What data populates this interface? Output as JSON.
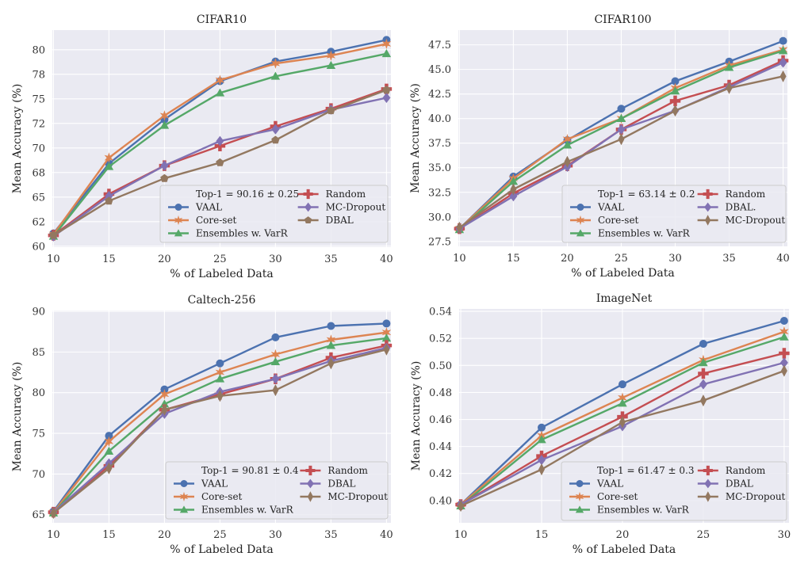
{
  "chart_data": [
    {
      "id": "cifar10",
      "type": "line",
      "title": "CIFAR10",
      "xlabel": "% of Labeled Data",
      "ylabel": "Mean Accuracy (%)",
      "x": [
        10,
        15,
        20,
        25,
        30,
        35,
        40
      ],
      "xticks": [
        10,
        15,
        20,
        25,
        30,
        35,
        40
      ],
      "xtick_labels": [
        "10",
        "15",
        "20",
        "25",
        "30",
        "35",
        "40"
      ],
      "xlim": [
        9.9,
        40.4
      ],
      "yticks": [
        60,
        62.5,
        65,
        67.5,
        70,
        72.5,
        75,
        77.5,
        80
      ],
      "ytick_labels": [
        "60",
        "62",
        "65",
        "68",
        "70",
        "72",
        "75",
        "78",
        "80"
      ],
      "ylim": [
        59.9,
        82.0
      ],
      "grid": true,
      "legend_title": "Top-1 = 90.16 ± 0.25",
      "legend_location": "lower-right",
      "series": [
        {
          "name": "VAAL",
          "color": "#4c72b0",
          "marker": "circle",
          "values": [
            61.3,
            68.4,
            72.9,
            76.8,
            78.8,
            79.8,
            81.0
          ]
        },
        {
          "name": "Core-set",
          "color": "#dd8452",
          "marker": "star",
          "values": [
            61.2,
            69.0,
            73.3,
            76.9,
            78.6,
            79.4,
            80.6
          ]
        },
        {
          "name": "Ensembles w. VarR",
          "color": "#55a868",
          "marker": "triangle",
          "values": [
            61.0,
            68.1,
            72.3,
            75.6,
            77.3,
            78.4,
            79.6
          ]
        },
        {
          "name": "Random",
          "color": "#c44e52",
          "marker": "plus",
          "values": [
            61.1,
            65.3,
            68.2,
            70.2,
            72.2,
            74.0,
            76.0
          ]
        },
        {
          "name": "MC-Dropout",
          "color": "#8172b3",
          "marker": "diamond",
          "values": [
            61.0,
            65.1,
            68.2,
            70.7,
            71.9,
            73.9,
            75.1
          ]
        },
        {
          "name": "DBAL",
          "color": "#937860",
          "marker": "pentagon",
          "values": [
            61.1,
            64.6,
            66.9,
            68.5,
            70.8,
            73.8,
            75.9
          ]
        }
      ]
    },
    {
      "id": "cifar100",
      "type": "line",
      "title": "CIFAR100",
      "xlabel": "% of Labeled Data",
      "ylabel": "Mean Accuracy (%)",
      "x": [
        10,
        15,
        20,
        25,
        30,
        35,
        40
      ],
      "xticks": [
        10,
        15,
        20,
        25,
        30,
        35,
        40
      ],
      "xtick_labels": [
        "10",
        "15",
        "20",
        "25",
        "30",
        "35",
        "40"
      ],
      "xlim": [
        9.9,
        40.4
      ],
      "yticks": [
        27.5,
        30.0,
        32.5,
        35.0,
        37.5,
        40.0,
        42.5,
        45.0,
        47.5
      ],
      "ytick_labels": [
        "27.5",
        "30.0",
        "32.5",
        "35.0",
        "37.5",
        "40.0",
        "42.5",
        "45.0",
        "47.5"
      ],
      "ylim": [
        27.0,
        49.0
      ],
      "grid": true,
      "legend_title": "Top-1 = 63.14 ± 0.2",
      "legend_location": "lower-right",
      "series": [
        {
          "name": "VAAL",
          "color": "#4c72b0",
          "marker": "circle",
          "values": [
            28.8,
            34.1,
            37.8,
            41.0,
            43.8,
            45.8,
            47.9
          ]
        },
        {
          "name": "Core-set",
          "color": "#dd8452",
          "marker": "star",
          "values": [
            28.8,
            33.9,
            37.9,
            40.0,
            43.1,
            45.4,
            47.0
          ]
        },
        {
          "name": "Ensembles w. VarR",
          "color": "#55a868",
          "marker": "triangle",
          "values": [
            28.7,
            33.6,
            37.3,
            40.0,
            42.8,
            45.2,
            46.9
          ]
        },
        {
          "name": "Random",
          "color": "#c44e52",
          "marker": "plus",
          "values": [
            28.8,
            32.4,
            35.2,
            38.9,
            41.8,
            43.4,
            45.9
          ]
        },
        {
          "name": "DBAL.",
          "color": "#8172b3",
          "marker": "diamond",
          "values": [
            28.8,
            32.1,
            35.1,
            38.9,
            40.8,
            43.2,
            45.7
          ]
        },
        {
          "name": "MC-Dropout",
          "color": "#937860",
          "marker": "thin-diamond",
          "values": [
            28.9,
            32.8,
            35.6,
            37.9,
            40.8,
            43.1,
            44.3
          ]
        }
      ]
    },
    {
      "id": "caltech256",
      "type": "line",
      "title": "Caltech-256",
      "xlabel": "% of Labeled Data",
      "ylabel": "Mean Accuracy (%)",
      "x": [
        10,
        15,
        20,
        25,
        30,
        35,
        40
      ],
      "xticks": [
        10,
        15,
        20,
        25,
        30,
        35,
        40
      ],
      "xtick_labels": [
        "10",
        "15",
        "20",
        "25",
        "30",
        "35",
        "40"
      ],
      "xlim": [
        9.9,
        40.4
      ],
      "yticks": [
        65,
        70,
        75,
        80,
        85,
        90
      ],
      "ytick_labels": [
        "65",
        "70",
        "75",
        "80",
        "85",
        "90"
      ],
      "ylim": [
        64.0,
        90.1
      ],
      "grid": true,
      "legend_title": "Top-1 = 90.81 ± 0.4",
      "legend_location": "lower-right",
      "series": [
        {
          "name": "VAAL",
          "color": "#4c72b0",
          "marker": "circle",
          "values": [
            65.4,
            74.7,
            80.4,
            83.6,
            86.8,
            88.2,
            88.5
          ]
        },
        {
          "name": "Core-set",
          "color": "#dd8452",
          "marker": "star",
          "values": [
            65.3,
            74.0,
            79.8,
            82.5,
            84.7,
            86.5,
            87.4
          ]
        },
        {
          "name": "Ensembles w. VarR",
          "color": "#55a868",
          "marker": "triangle",
          "values": [
            65.2,
            72.8,
            78.6,
            81.7,
            83.8,
            85.8,
            86.7
          ]
        },
        {
          "name": "Random",
          "color": "#c44e52",
          "marker": "plus",
          "values": [
            65.3,
            71.0,
            77.9,
            79.8,
            81.7,
            84.3,
            85.8
          ]
        },
        {
          "name": "DBAL",
          "color": "#8172b3",
          "marker": "diamond",
          "values": [
            65.3,
            71.3,
            77.4,
            80.1,
            81.7,
            83.9,
            85.5
          ]
        },
        {
          "name": "MC-Dropout",
          "color": "#937860",
          "marker": "thin-diamond",
          "values": [
            65.2,
            70.7,
            77.9,
            79.6,
            80.3,
            83.6,
            85.3
          ]
        }
      ]
    },
    {
      "id": "imagenet",
      "type": "line",
      "title": "ImageNet",
      "xlabel": "% of Labeled Data",
      "ylabel": "Mean Accuracy (%)",
      "x": [
        10,
        15,
        20,
        25,
        30
      ],
      "xticks": [
        10,
        15,
        20,
        25,
        30
      ],
      "xtick_labels": [
        "10",
        "15",
        "20",
        "25",
        "30"
      ],
      "xlim": [
        9.9,
        30.3
      ],
      "yticks": [
        0.4,
        0.42,
        0.44,
        0.46,
        0.48,
        0.5,
        0.52,
        0.54
      ],
      "ytick_labels": [
        "0.40",
        "0.42",
        "0.44",
        "0.46",
        "0.48",
        "0.50",
        "0.52",
        "0.54"
      ],
      "ylim": [
        0.3835,
        0.5418
      ],
      "grid": true,
      "legend_title": "Top-1  = 61.47 ± 0.3",
      "legend_location": "lower-right",
      "series": [
        {
          "name": "VAAL",
          "color": "#4c72b0",
          "marker": "circle",
          "values": [
            0.397,
            0.454,
            0.486,
            0.516,
            0.533
          ]
        },
        {
          "name": "Core-set",
          "color": "#dd8452",
          "marker": "star",
          "values": [
            0.397,
            0.448,
            0.476,
            0.504,
            0.525
          ]
        },
        {
          "name": "Ensembles w. VarR",
          "color": "#55a868",
          "marker": "triangle",
          "values": [
            0.396,
            0.445,
            0.472,
            0.502,
            0.521
          ]
        },
        {
          "name": "Random",
          "color": "#c44e52",
          "marker": "plus",
          "values": [
            0.397,
            0.433,
            0.462,
            0.494,
            0.509
          ]
        },
        {
          "name": "DBAL",
          "color": "#8172b3",
          "marker": "diamond",
          "values": [
            0.397,
            0.43,
            0.455,
            0.486,
            0.502
          ]
        },
        {
          "name": "MC-Dropout",
          "color": "#937860",
          "marker": "thin-diamond",
          "values": [
            0.396,
            0.423,
            0.458,
            0.474,
            0.496
          ]
        }
      ]
    }
  ]
}
